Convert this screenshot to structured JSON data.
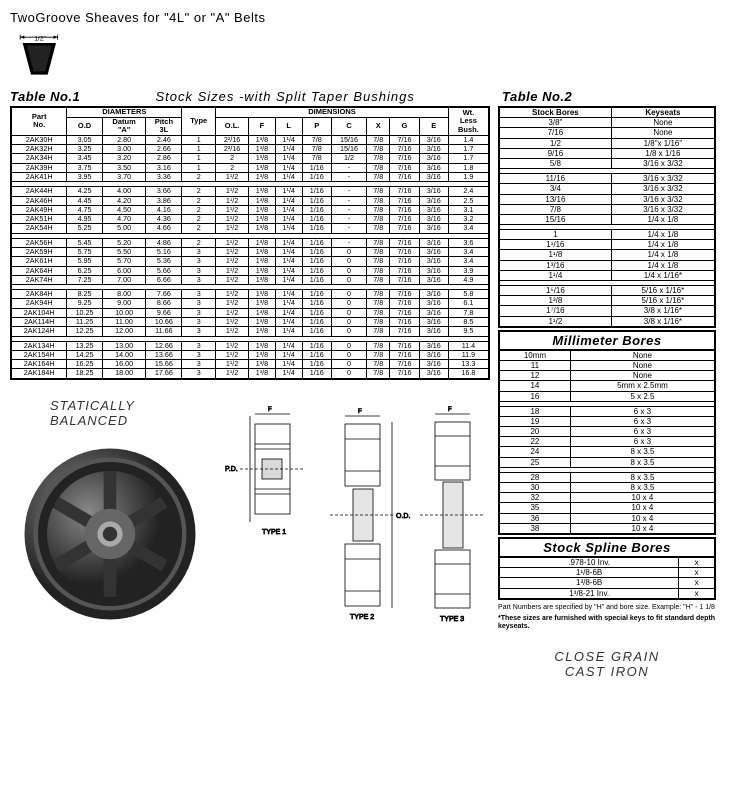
{
  "title": "TwoGroove Sheaves for  \"4L\"  or  \"A\"  Belts",
  "belt_label": "1/2\"",
  "subtitle": "Stock Sizes -with Split Taper Bushings",
  "table1_label": "Table No.1",
  "table2_label": "Table No.2",
  "t1_headers": {
    "part": "Part\nNo.",
    "diameters": "DIAMETERS",
    "od": "O.D",
    "datum": "Datum\n\"A\"",
    "pitch": "Pitch\n3L",
    "type": "Type",
    "dimensions": "DIMENSIONS",
    "ol": "O.L.",
    "f": "F",
    "l": "L",
    "p": "P",
    "c": "C",
    "x": "X",
    "g": "G",
    "e": "E",
    "wt": "Wt.\nLess\nBush."
  },
  "t1_rows": [
    [
      "2AK30H",
      "3.05",
      "2.80",
      "2.46",
      "1",
      "2²/16",
      "1³/8",
      "1¹/4",
      "7/8",
      "15/16",
      "7/8",
      "7/16",
      "3/16",
      "1.4"
    ],
    [
      "2AK32H",
      "3.25",
      "3.00",
      "2.66",
      "1",
      "2²/16",
      "1³/8",
      "1¹/4",
      "7/8",
      "15/16",
      "7/8",
      "7/16",
      "3/16",
      "1.7"
    ],
    [
      "2AK34H",
      "3.45",
      "3.20",
      "2.86",
      "1",
      "2",
      "1³/8",
      "1¹/4",
      "7/8",
      "1/2",
      "7/8",
      "7/16",
      "3/16",
      "1.7"
    ],
    [
      "2AK39H",
      "3.75",
      "3.50",
      "3.16",
      "1",
      "2",
      "1³/8",
      "1¹/4",
      "1/16",
      "-",
      "7/8",
      "7/16",
      "3/16",
      "1.8"
    ],
    [
      "2AK41H",
      "3.95",
      "3.70",
      "3.36",
      "2",
      "1¹/2",
      "1³/8",
      "1¹/4",
      "1/16",
      "-",
      "7/8",
      "7/16",
      "3/16",
      "1.9"
    ],
    [],
    [
      "2AK44H",
      "4.25",
      "4.00",
      "3.66",
      "2",
      "1¹/2",
      "1³/8",
      "1¹/4",
      "1/16",
      "-",
      "7/8",
      "7/16",
      "3/16",
      "2.4"
    ],
    [
      "2AK46H",
      "4.45",
      "4.20",
      "3.86",
      "2",
      "1¹/2",
      "1³/8",
      "1¹/4",
      "1/16",
      "-",
      "7/8",
      "7/16",
      "3/16",
      "2.5"
    ],
    [
      "2AK49H",
      "4.75",
      "4.50",
      "4.16",
      "2",
      "1¹/2",
      "1³/8",
      "1¹/4",
      "1/16",
      "-",
      "7/8",
      "7/16",
      "3/16",
      "3.1"
    ],
    [
      "2AK51H",
      "4.95",
      "4.70",
      "4.36",
      "2",
      "1¹/2",
      "1³/8",
      "1¹/4",
      "1/16",
      "-",
      "7/8",
      "7/16",
      "3/16",
      "3.2"
    ],
    [
      "2AK54H",
      "5.25",
      "5.00",
      "4.66",
      "2",
      "1¹/2",
      "1³/8",
      "1¹/4",
      "1/16",
      "-",
      "7/8",
      "7/16",
      "3/16",
      "3.4"
    ],
    [],
    [
      "2AK56H",
      "5.45",
      "5.20",
      "4.86",
      "2",
      "1¹/2",
      "1³/8",
      "1¹/4",
      "1/16",
      "-",
      "7/8",
      "7/16",
      "3/16",
      "3.6"
    ],
    [
      "2AK59H",
      "5.75",
      "5.50",
      "5.16",
      "3",
      "1¹/2",
      "1³/8",
      "1¹/4",
      "1/16",
      "0",
      "7/8",
      "7/16",
      "3/16",
      "3.4"
    ],
    [
      "2AK61H",
      "5.95",
      "5.70",
      "5.36",
      "3",
      "1¹/2",
      "1³/8",
      "1¹/4",
      "1/16",
      "0",
      "7/8",
      "7/16",
      "3/16",
      "3.4"
    ],
    [
      "2AK64H",
      "6.25",
      "6.00",
      "5.66",
      "3",
      "1¹/2",
      "1³/8",
      "1¹/4",
      "1/16",
      "0",
      "7/8",
      "7/16",
      "3/16",
      "3.9"
    ],
    [
      "2AK74H",
      "7.25",
      "7.00",
      "6.66",
      "3",
      "1¹/2",
      "1³/8",
      "1¹/4",
      "1/16",
      "0",
      "7/8",
      "7/16",
      "3/16",
      "4.9"
    ],
    [],
    [
      "2AK84H",
      "8.25",
      "8.00",
      "7.66",
      "3",
      "1¹/2",
      "1³/8",
      "1¹/4",
      "1/16",
      "0",
      "7/8",
      "7/16",
      "3/16",
      "5.8"
    ],
    [
      "2AK94H",
      "9.25",
      "9.00",
      "8.66",
      "3",
      "1¹/2",
      "1³/8",
      "1¹/4",
      "1/16",
      "0",
      "7/8",
      "7/16",
      "3/16",
      "6.1"
    ],
    [
      "2AK104H",
      "10.25",
      "10.00",
      "9.66",
      "3",
      "1¹/2",
      "1³/8",
      "1¹/4",
      "1/16",
      "0",
      "7/8",
      "7/16",
      "3/16",
      "7.8"
    ],
    [
      "2AK114H",
      "11.25",
      "11.00",
      "10.66",
      "3",
      "1¹/2",
      "1³/8",
      "1¹/4",
      "1/16",
      "0",
      "7/8",
      "7/16",
      "3/16",
      "8.5"
    ],
    [
      "2AK124H",
      "12.25",
      "12.00",
      "11.66",
      "3",
      "1¹/2",
      "1³/8",
      "1¹/4",
      "1/16",
      "0",
      "7/8",
      "7/16",
      "3/16",
      "9.5"
    ],
    [],
    [
      "2AK134H",
      "13.25",
      "13.00",
      "12.66",
      "3",
      "1¹/2",
      "1³/8",
      "1¹/4",
      "1/16",
      "0",
      "7/8",
      "7/16",
      "3/16",
      "11.4"
    ],
    [
      "2AK154H",
      "14.25",
      "14.00",
      "13.66",
      "3",
      "1¹/2",
      "1³/8",
      "1¹/4",
      "1/16",
      "0",
      "7/8",
      "7/16",
      "3/16",
      "11.9"
    ],
    [
      "2AK164H",
      "16.25",
      "16.00",
      "15.66",
      "3",
      "1¹/2",
      "1³/8",
      "1¹/4",
      "1/16",
      "0",
      "7/8",
      "7/16",
      "3/16",
      "13.3"
    ],
    [
      "2AK184H",
      "18.25",
      "18.00",
      "17.66",
      "3",
      "1¹/2",
      "1³/8",
      "1¹/4",
      "1/16",
      "0",
      "7/8",
      "7/16",
      "3/16",
      "16.8"
    ]
  ],
  "t2_headers": {
    "bore": "Stock Bores",
    "key": "Keyseats"
  },
  "t2_rows": [
    [
      "3/8\"",
      "None"
    ],
    [
      "7/16",
      "None"
    ],
    [
      "1/2",
      "1/8\"x 1/16\""
    ],
    [
      "9/16",
      "1/8 x 1/16"
    ],
    [
      "5/8",
      "3/16 x 3/32"
    ],
    [],
    [
      "11/16",
      "3/16 x 3/32"
    ],
    [
      "3/4",
      "3/16 x 3/32"
    ],
    [
      "13/16",
      "3/16 x 3/32"
    ],
    [
      "7/8",
      "3/16 x 3/32"
    ],
    [
      "15/16",
      "1/4 x 1/8"
    ],
    [],
    [
      "1",
      "1/4 x 1/8"
    ],
    [
      "1¹/16",
      "1/4 x 1/8"
    ],
    [
      "1¹/8",
      "1/4 x 1/8"
    ],
    [
      "1³/16",
      "1/4 x 1/8"
    ],
    [
      "1¹/4",
      "1/4  x 1/16*"
    ],
    [],
    [
      "1⁵/16",
      "5/16 x 1/16*"
    ],
    [
      "1³/8",
      "5/16 x 1/16*"
    ],
    [
      "1⁷/16",
      "3/8  x 1/16*"
    ],
    [
      "1¹/2",
      "3/8  x 1/16*"
    ]
  ],
  "mm_header": "Millimeter Bores",
  "mm_rows": [
    [
      "10mm",
      "None"
    ],
    [
      "11",
      "None"
    ],
    [
      "12",
      "None"
    ],
    [
      "14",
      "5mm x 2.5mm"
    ],
    [
      "16",
      "5      x 2.5"
    ],
    [],
    [
      "18",
      "6      x 3"
    ],
    [
      "19",
      "6      x 3"
    ],
    [
      "20",
      "6      x 3"
    ],
    [
      "22",
      "6      x 3"
    ],
    [
      "24",
      "8      x 3.5"
    ],
    [
      "25",
      "8      x 3.5"
    ],
    [],
    [
      "28",
      "8      x 3.5"
    ],
    [
      "30",
      "8      x 3.5"
    ],
    [
      "32",
      "10     x 4"
    ],
    [
      "35",
      "10     x 4"
    ],
    [
      "36",
      "10     x 4"
    ],
    [
      "38",
      "10     x 4"
    ]
  ],
  "spline_header": "Stock Spline Bores",
  "spline_rows": [
    [
      ".978-10 Inv.",
      "x"
    ],
    [
      "1¹/8-6B",
      "x"
    ],
    [
      "1³/8-6B",
      "x"
    ],
    [
      "1³/8-21 Inv.",
      "x"
    ]
  ],
  "footnote1": "Part Numbers are specified by \"H\" and bore size. Example: \"H\" - 1 1/8",
  "footnote2": "*These sizes are furnished with special keys to fit standard depth keyseats.",
  "static_balanced": "STATICALLY\nBALANCED",
  "close_grain": "CLOSE GRAIN\nCAST IRON",
  "type_labels": [
    "TYPE 1",
    "TYPE 2",
    "TYPE 3"
  ]
}
